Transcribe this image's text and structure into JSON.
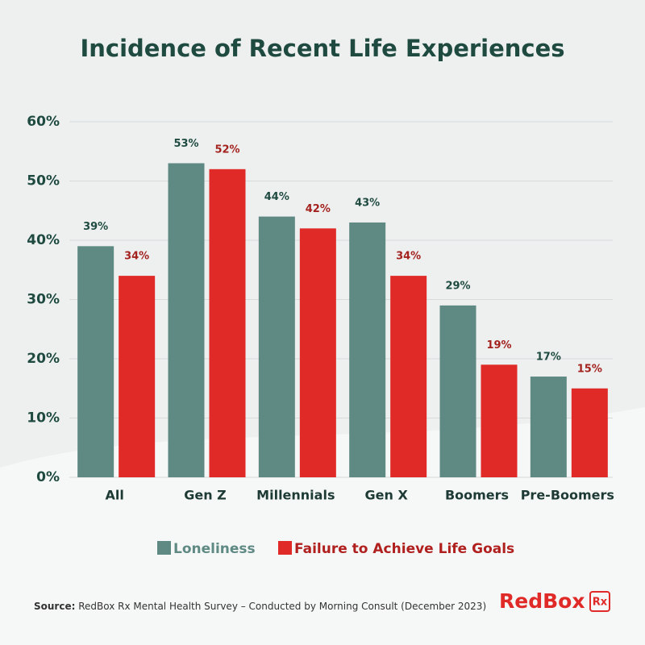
{
  "chart_data": {
    "type": "bar",
    "title": "Incidence of Recent Life Experiences",
    "categories": [
      "All",
      "Gen Z",
      "Millennials",
      "Gen X",
      "Boomers",
      "Pre-Boomers"
    ],
    "series": [
      {
        "name": "Loneliness",
        "color": "#5f8a84",
        "values": [
          39,
          53,
          44,
          43,
          29,
          17
        ],
        "value_labels": [
          "39%",
          "53%",
          "44%",
          "43%",
          "29%",
          "17%"
        ]
      },
      {
        "name": "Failure to Achieve Life Goals",
        "color": "#e02a27",
        "values": [
          34,
          52,
          42,
          34,
          19,
          15
        ],
        "value_labels": [
          "34%",
          "52%",
          "42%",
          "34%",
          "19%",
          "15%"
        ]
      }
    ],
    "ylim": [
      0,
      60
    ],
    "yticks": [
      {
        "value": 0,
        "label": "0%"
      },
      {
        "value": 10,
        "label": "10%"
      },
      {
        "value": 20,
        "label": "20%"
      },
      {
        "value": 30,
        "label": "30%"
      },
      {
        "value": 40,
        "label": "40%"
      },
      {
        "value": 50,
        "label": "50%"
      },
      {
        "value": 60,
        "label": "60%"
      }
    ],
    "grid": true,
    "legend": "bottom"
  },
  "source": {
    "label": "Source:",
    "text": "RedBox Rx Mental Health Survey – Conducted by Morning Consult (December 2023)"
  },
  "logo": {
    "name": "RedBox",
    "badge": "Rx"
  }
}
